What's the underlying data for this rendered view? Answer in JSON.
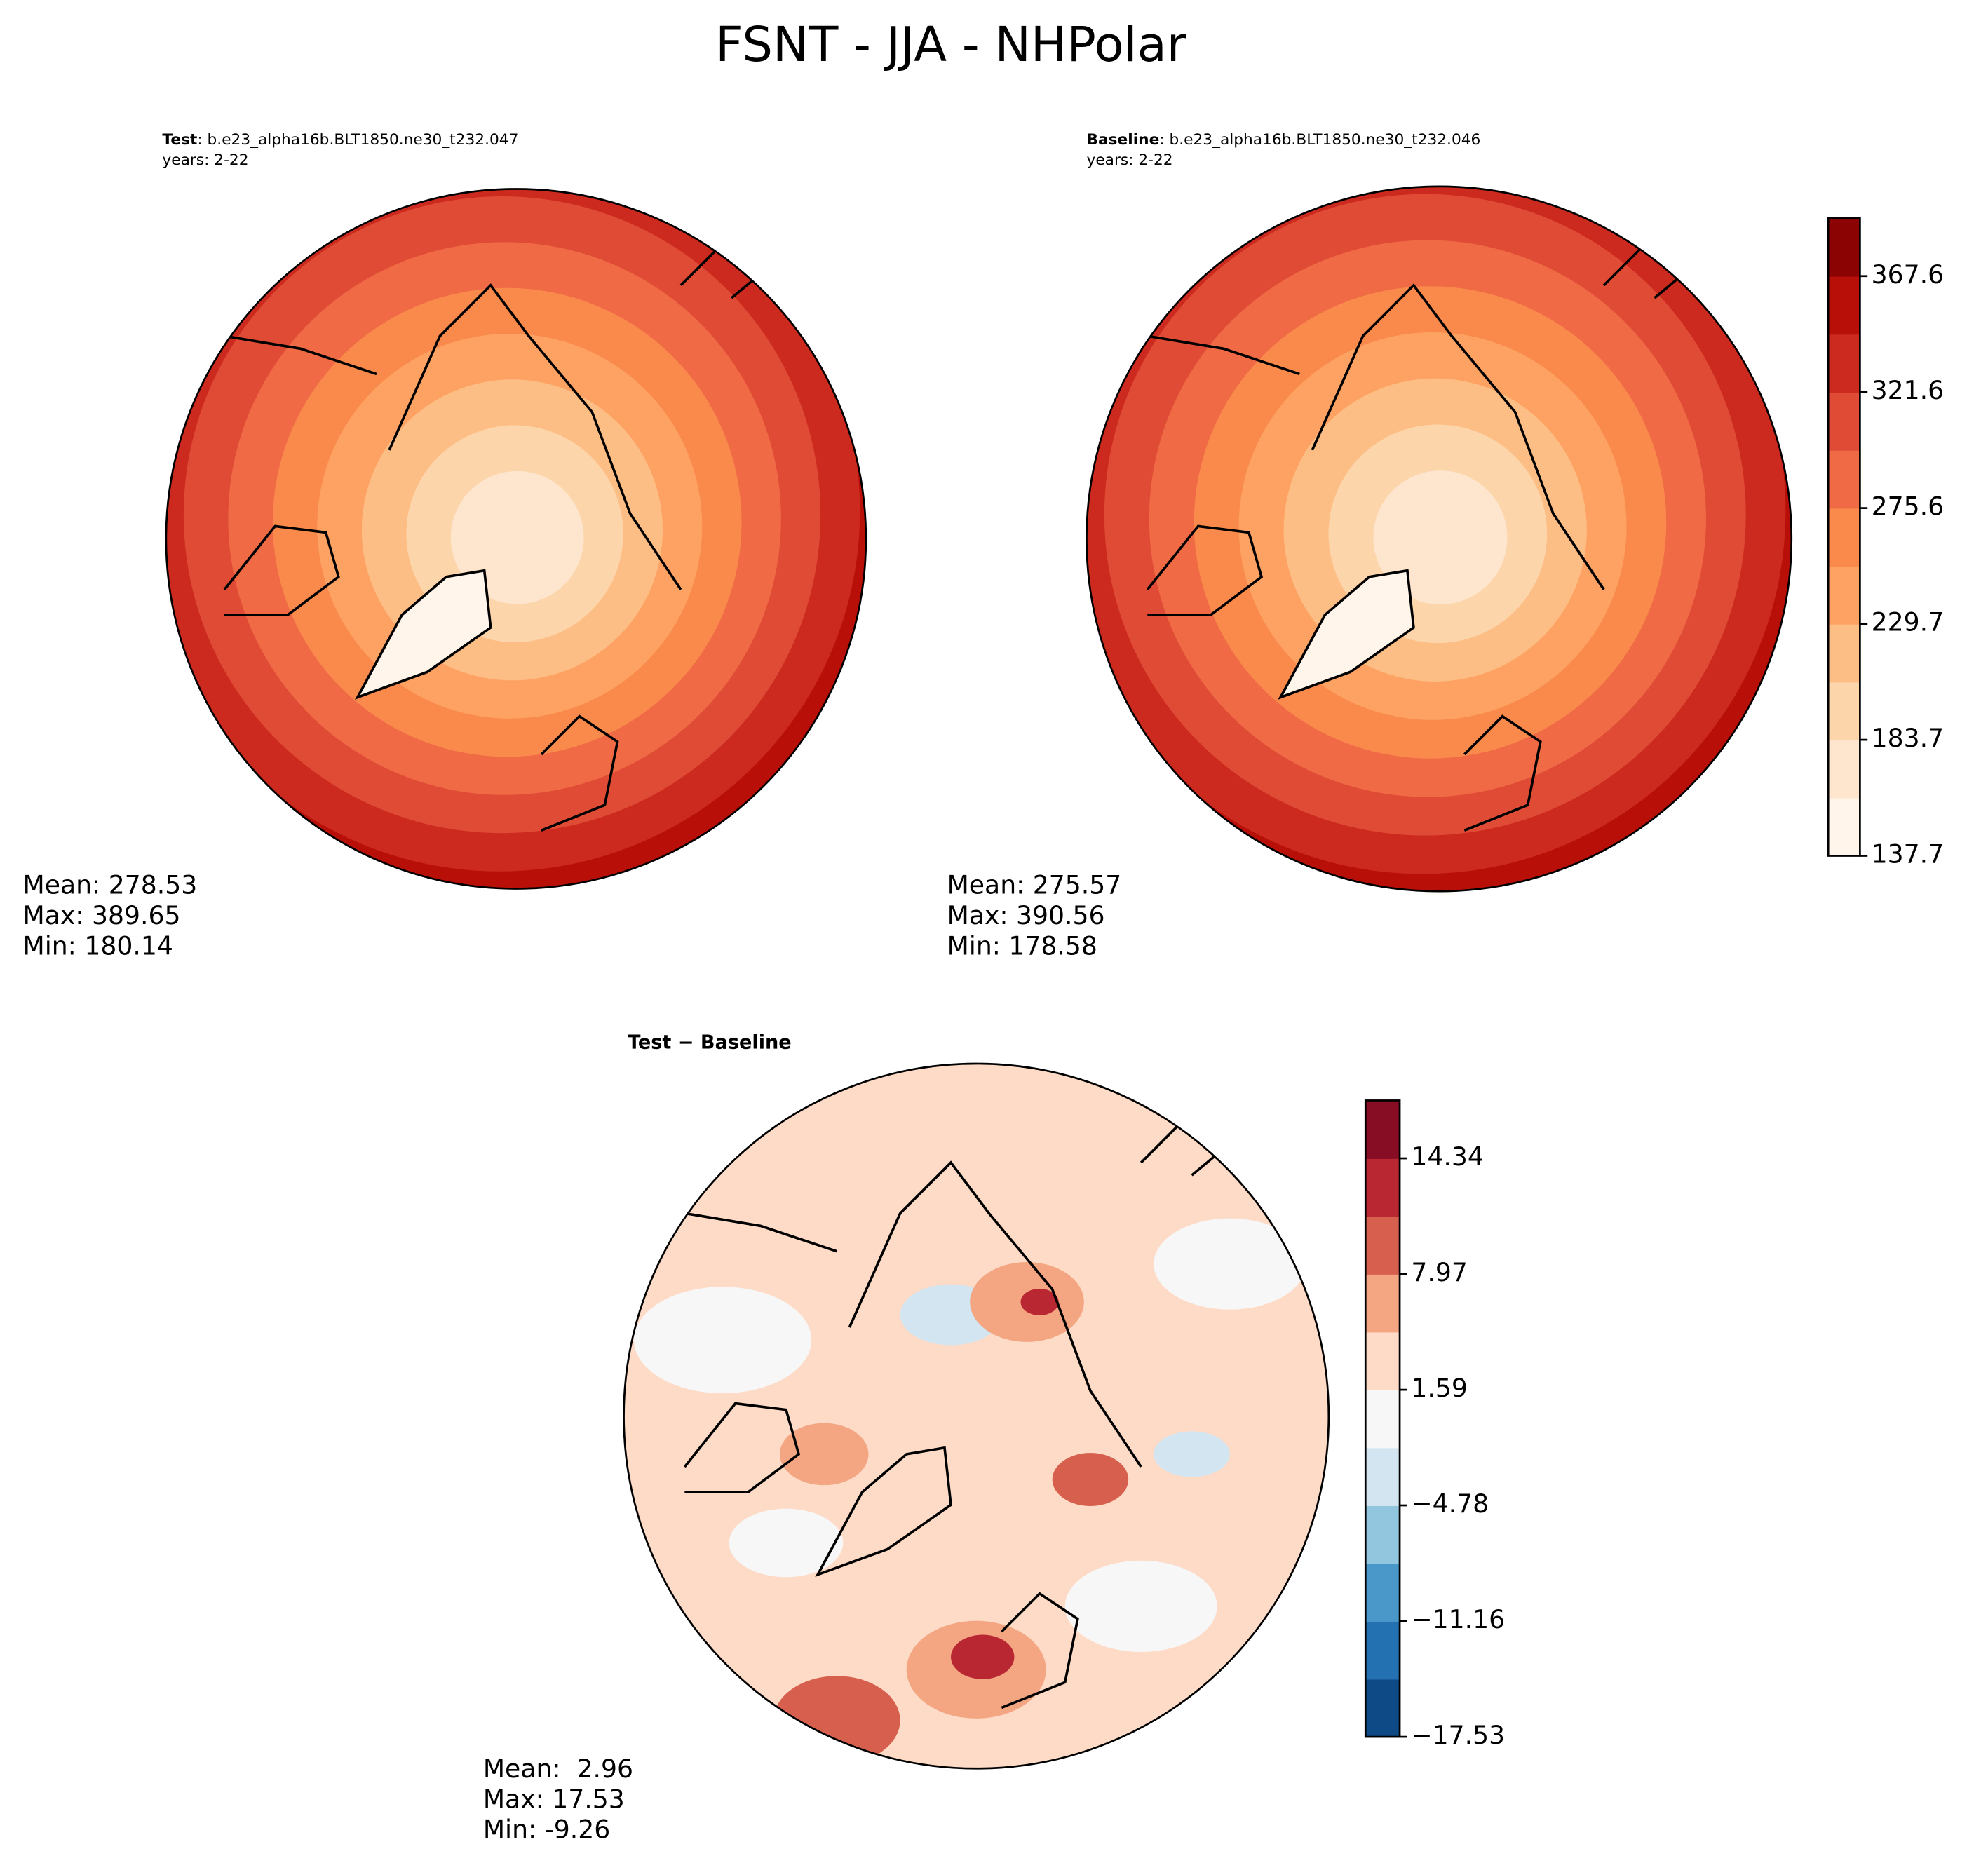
{
  "title": "FSNT - JJA - NHPolar",
  "panels": [
    {
      "label": "Test",
      "case": ": b.e23_alpha16b.BLT1850.ne30_t232.047",
      "years": "years: 2-22",
      "stats": [
        "Mean: 278.53",
        "Max: 389.65",
        "Min: 180.14"
      ]
    },
    {
      "label": "Baseline",
      "case": ": b.e23_alpha16b.BLT1850.ne30_t232.046",
      "years": "years: 2-22",
      "stats": [
        "Mean: 275.57",
        "Max: 390.56",
        "Min: 178.58"
      ]
    },
    {
      "label": "Test − Baseline",
      "stats": [
        "Mean:  2.96",
        "Max: 17.53",
        "Min: -9.26"
      ]
    }
  ],
  "colorbars": [
    {
      "lim": [
        137.7,
        390.6
      ],
      "ticks": [
        137.7,
        183.7,
        229.7,
        275.6,
        321.6,
        367.6
      ],
      "colors": [
        "#fff5eb",
        "#fee6ce",
        "#fdd5ab",
        "#fdbe85",
        "#fda262",
        "#f98a4c",
        "#ef6a45",
        "#e04b35",
        "#cc2a1e",
        "#b81008",
        "#8c0303"
      ]
    },
    {
      "lim": [
        -17.53,
        17.53
      ],
      "ticks": [
        {
          "value": -17.53,
          "label": "−17.53"
        },
        {
          "value": -11.16,
          "label": "−11.16"
        },
        {
          "value": -4.78,
          "label": "−4.78"
        },
        1.59,
        7.97,
        14.34
      ],
      "colors": [
        "#0e4a86",
        "#2471b2",
        "#4a98c9",
        "#92c5de",
        "#d2e5f0",
        "#f7f7f7",
        "#fddbc7",
        "#f4a683",
        "#d6604d",
        "#b92732",
        "#870d24"
      ]
    }
  ]
}
